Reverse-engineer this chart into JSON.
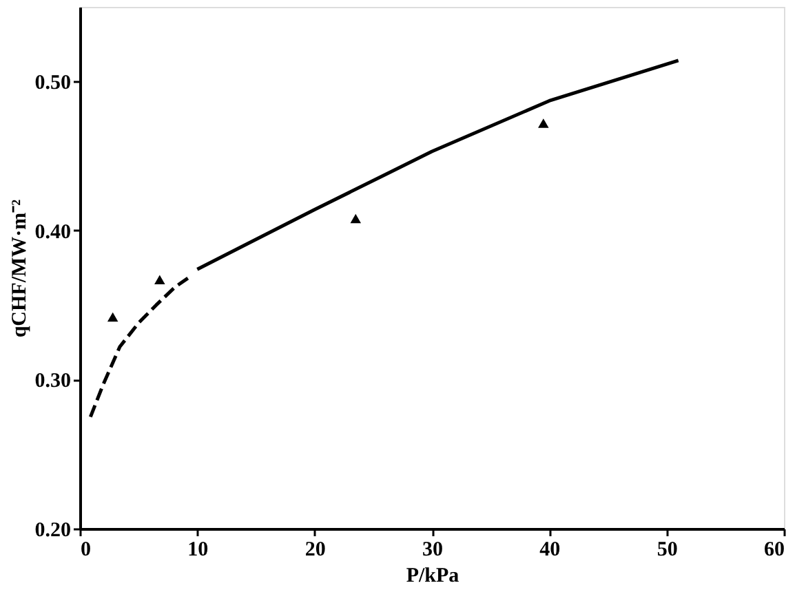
{
  "chart_data": {
    "type": "line",
    "xlabel": "P/kPa",
    "ylabel": "qCHF/MW·m⁻²",
    "xlim": [
      0,
      60
    ],
    "xticks": [
      0,
      10,
      20,
      30,
      40,
      50,
      60
    ],
    "ylim": [
      0.2,
      0.55
    ],
    "yticks": [
      {
        "value": 0.2,
        "label": "0.20"
      },
      {
        "value": 0.3,
        "label": "0.30"
      },
      {
        "value": 0.4,
        "label": "0.40"
      },
      {
        "value": 0.5,
        "label": "0.50"
      }
    ],
    "grid": false,
    "series": [
      {
        "color": "#000000",
        "line_style": "dashed",
        "marker": "none",
        "x": [
          0.9,
          2,
          3.4,
          5,
          6.5,
          8.1,
          9.2
        ],
        "values": [
          0.275,
          0.297,
          0.322,
          0.338,
          0.35,
          0.362,
          0.368
        ]
      },
      {
        "color": "#000000",
        "line_style": "solid",
        "marker": "none",
        "x": [
          10,
          14,
          20,
          30,
          40,
          51
        ],
        "values": [
          0.374,
          0.39,
          0.414,
          0.453,
          0.487,
          0.514
        ]
      },
      {
        "type": "scatter",
        "color": "#000000",
        "marker": "triangle",
        "x": [
          2.8,
          6.8,
          23.5,
          39.5
        ],
        "values": [
          0.342,
          0.367,
          0.408,
          0.472
        ]
      }
    ]
  }
}
